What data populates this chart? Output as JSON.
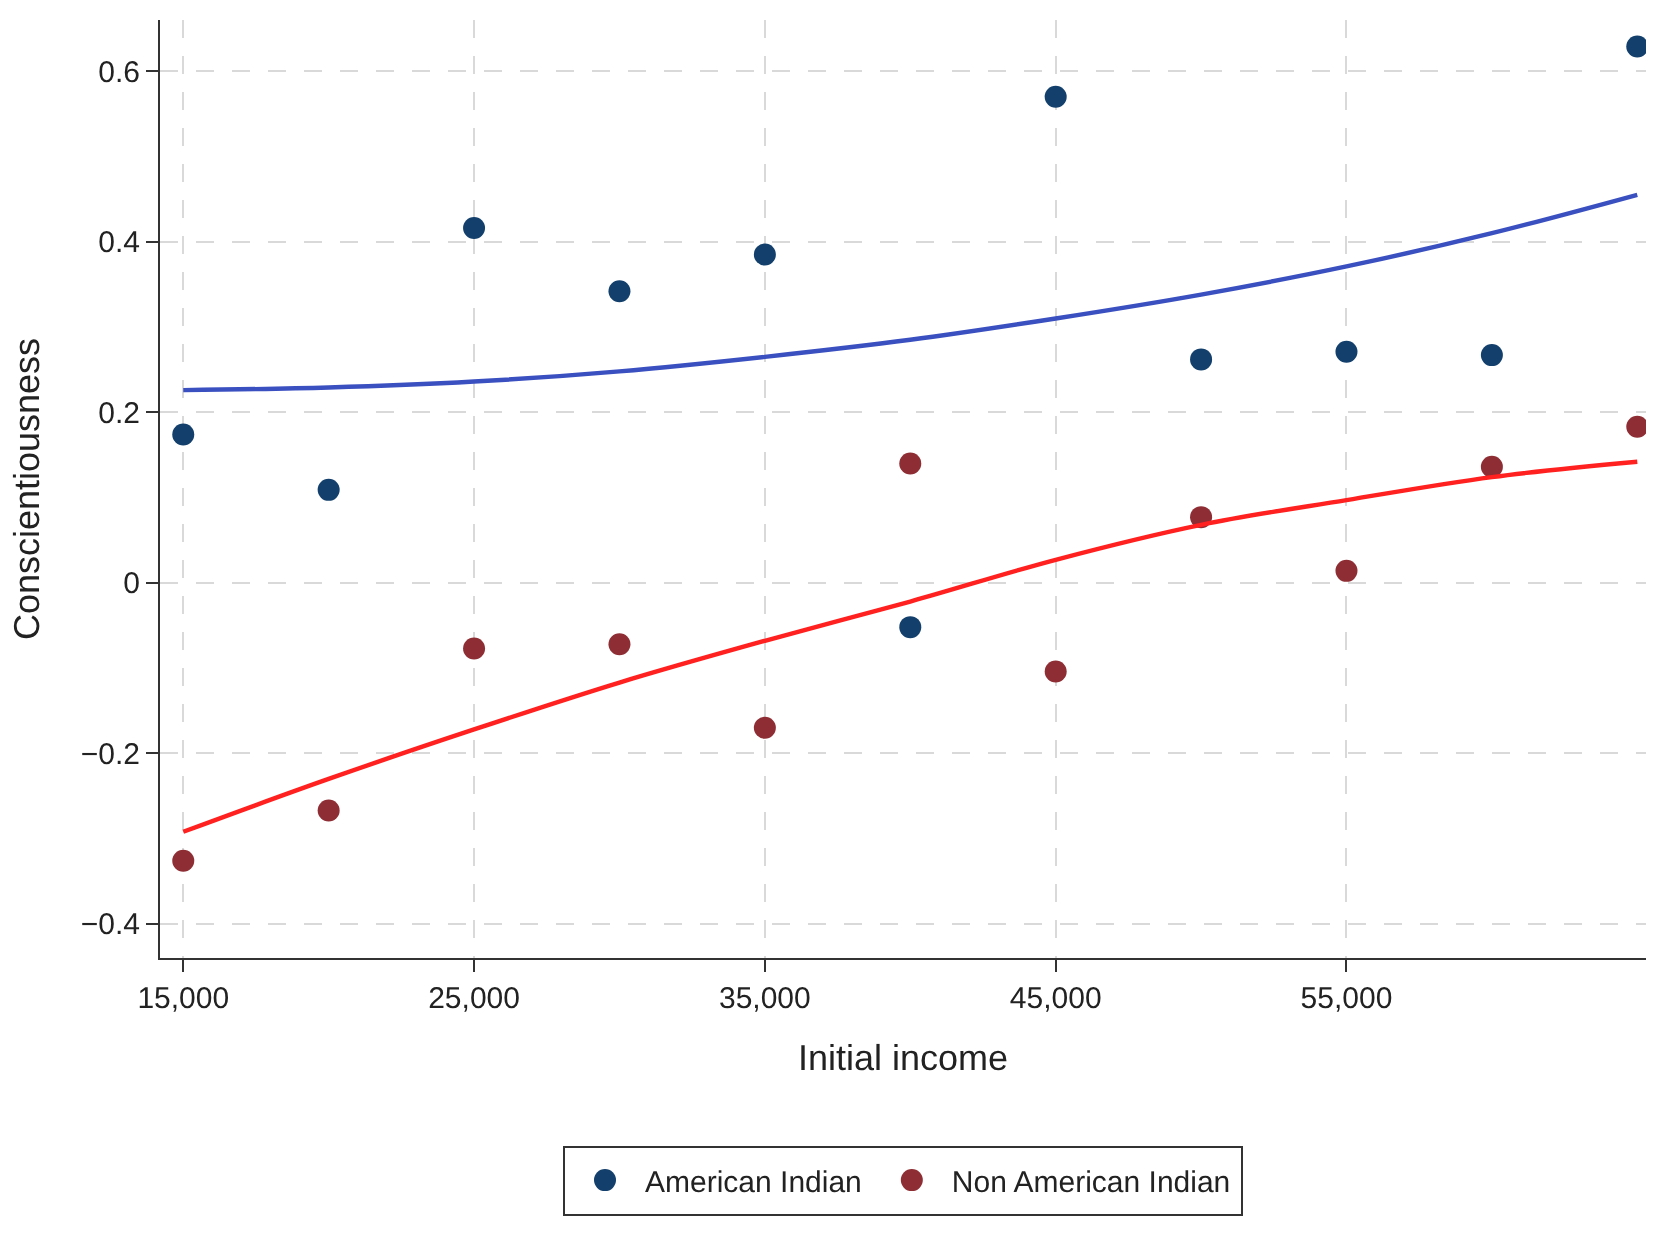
{
  "chart_data": {
    "type": "scatter",
    "xlabel": "Initial income",
    "ylabel": "Conscientiousness",
    "xlim": [
      14200,
      65300
    ],
    "xticks": [
      {
        "value": 15000,
        "label": "15,000"
      },
      {
        "value": 25000,
        "label": "25,000"
      },
      {
        "value": 35000,
        "label": "35,000"
      },
      {
        "value": 45000,
        "label": "45,000"
      },
      {
        "value": 55000,
        "label": "55,000"
      }
    ],
    "ylim": [
      -0.44,
      0.66
    ],
    "yticks": [
      {
        "value": -0.4,
        "label": "−0.4"
      },
      {
        "value": -0.2,
        "label": "−0.2"
      },
      0,
      0.2,
      0.4,
      0.6
    ],
    "grid": true,
    "legend": "bottom",
    "marker": "circle",
    "x": [
      15000,
      20000,
      25000,
      30000,
      35000,
      40000,
      45000,
      50000,
      55000,
      60000,
      65000
    ],
    "series": [
      {
        "name": "American Indian",
        "color": "#123f6b",
        "values": [
          0.174,
          0.109,
          0.416,
          0.342,
          0.385,
          -0.052,
          0.57,
          0.262,
          0.271,
          0.267,
          0.629
        ]
      },
      {
        "name": "Non American Indian",
        "color": "#8e2d33",
        "values": [
          -0.326,
          -0.267,
          -0.077,
          -0.072,
          -0.17,
          0.14,
          -0.104,
          0.077,
          0.014,
          0.136,
          0.183
        ]
      },
      {
        "type": "line",
        "color": "#3a4fc0",
        "line_style": "solid",
        "marker": "none",
        "values": [
          0.226,
          0.229,
          0.236,
          0.248,
          0.265,
          0.285,
          0.31,
          0.338,
          0.371,
          0.41,
          0.455
        ]
      },
      {
        "type": "line",
        "color": "#ff2020",
        "line_style": "solid",
        "marker": "none",
        "values": [
          -0.292,
          -0.23,
          -0.172,
          -0.117,
          -0.068,
          -0.022,
          0.027,
          0.068,
          0.097,
          0.124,
          0.142
        ]
      }
    ]
  }
}
